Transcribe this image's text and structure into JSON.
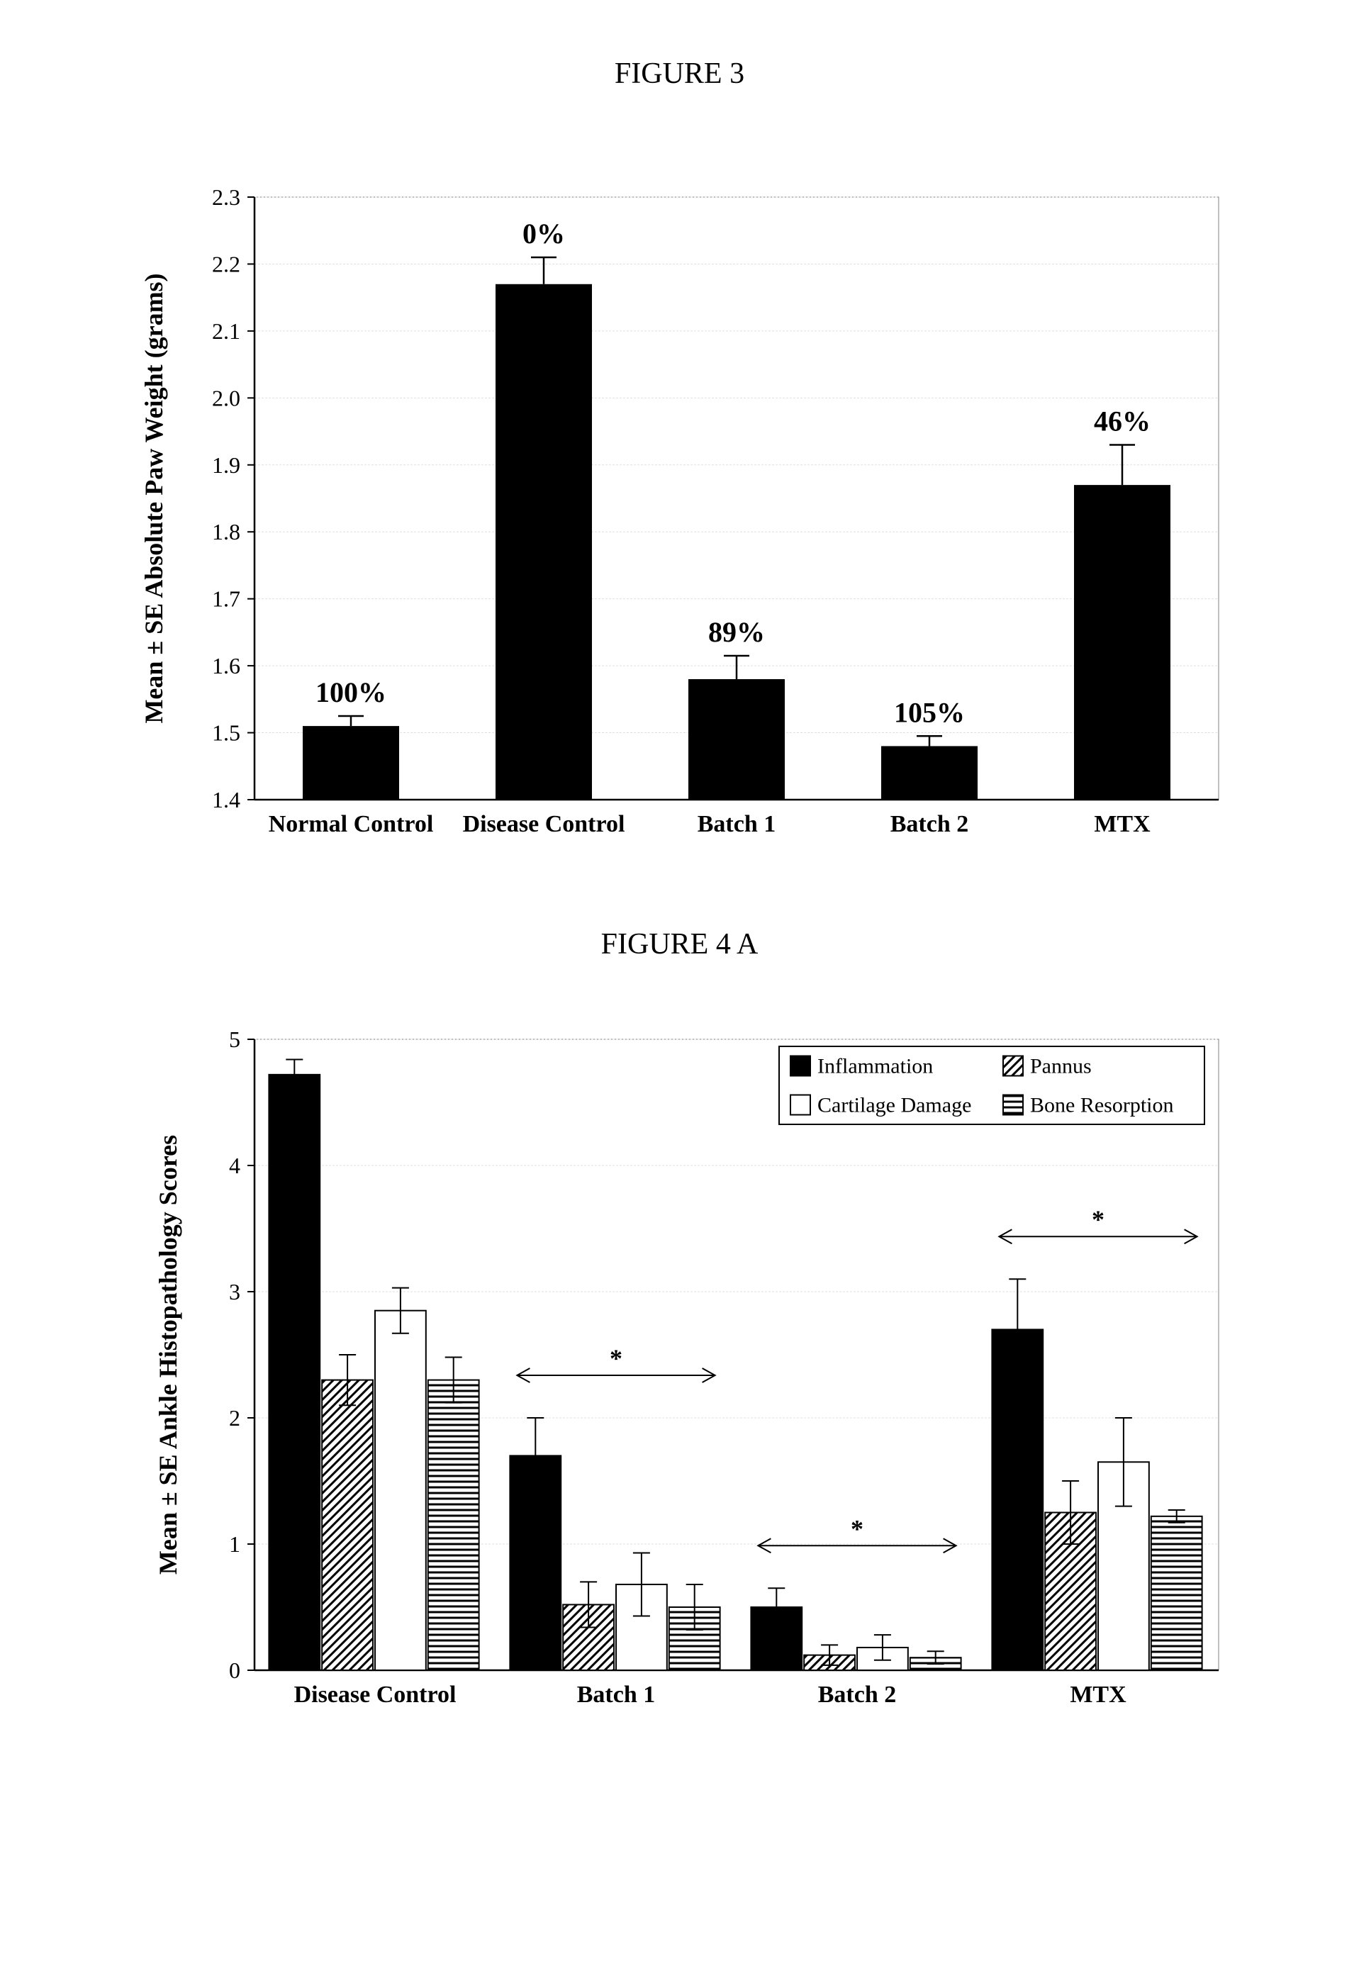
{
  "figure3": {
    "title": "FIGURE  3",
    "type": "bar",
    "categories": [
      "Normal Control",
      "Disease Control",
      "Batch 1",
      "Batch 2",
      "MTX"
    ],
    "ytick_step": 0.1,
    "values": [
      1.51,
      2.17,
      1.58,
      1.48,
      1.87
    ],
    "errors": [
      0.015,
      0.04,
      0.035,
      0.015,
      0.06
    ],
    "value_labels": [
      "100%",
      "0%",
      "89%",
      "105%",
      "46%"
    ],
    "bar_color": "#000000",
    "background_color": "#ffffff",
    "grid_color": "#e0e0e0",
    "border_color": "#808080",
    "ymin": 1.4,
    "ymax": 2.3,
    "ylabel": "Mean ± SE Absolute Paw Weight (grams)",
    "bar_width": 0.5,
    "label_fontsize": 36,
    "tick_fontsize": 32,
    "valuelabel_fontsize": 40
  },
  "figure4a": {
    "title": "FIGURE 4 A",
    "type": "grouped-bar",
    "categories": [
      "Disease Control",
      "Batch 1",
      "Batch 2",
      "MTX"
    ],
    "series": [
      {
        "name": "Inflammation",
        "pattern": "solid",
        "values": [
          4.72,
          1.7,
          0.5,
          2.7
        ],
        "errors": [
          0.12,
          0.3,
          0.15,
          0.4
        ]
      },
      {
        "name": "Pannus",
        "pattern": "diag",
        "values": [
          2.3,
          0.52,
          0.12,
          1.25
        ],
        "errors": [
          0.2,
          0.18,
          0.08,
          0.25
        ]
      },
      {
        "name": "Cartilage Damage",
        "pattern": "open",
        "values": [
          2.85,
          0.68,
          0.18,
          1.65
        ],
        "errors": [
          0.18,
          0.25,
          0.1,
          0.35
        ]
      },
      {
        "name": "Bone Resorption",
        "pattern": "horiz",
        "values": [
          2.3,
          0.5,
          0.1,
          1.22
        ],
        "errors": [
          0.18,
          0.18,
          0.05,
          0.05
        ]
      }
    ],
    "sig_markers": [
      {
        "group_index": 1,
        "label": "*"
      },
      {
        "group_index": 2,
        "label": "*"
      },
      {
        "group_index": 3,
        "label": "*"
      }
    ],
    "ymin": 0,
    "ymax": 5,
    "ytick_step": 1,
    "ylabel": "Mean ± SE Ankle Histopathology Scores",
    "bar_colors": {
      "solid": "#000000",
      "diag": "#000000",
      "open": "#ffffff",
      "horiz": "#000000"
    },
    "background_color": "#ffffff",
    "grid_color": "#e0e0e0",
    "border_color": "#808080",
    "legend_border": "#000000",
    "bar_width": 0.22,
    "label_fontsize": 36,
    "tick_fontsize": 32
  }
}
